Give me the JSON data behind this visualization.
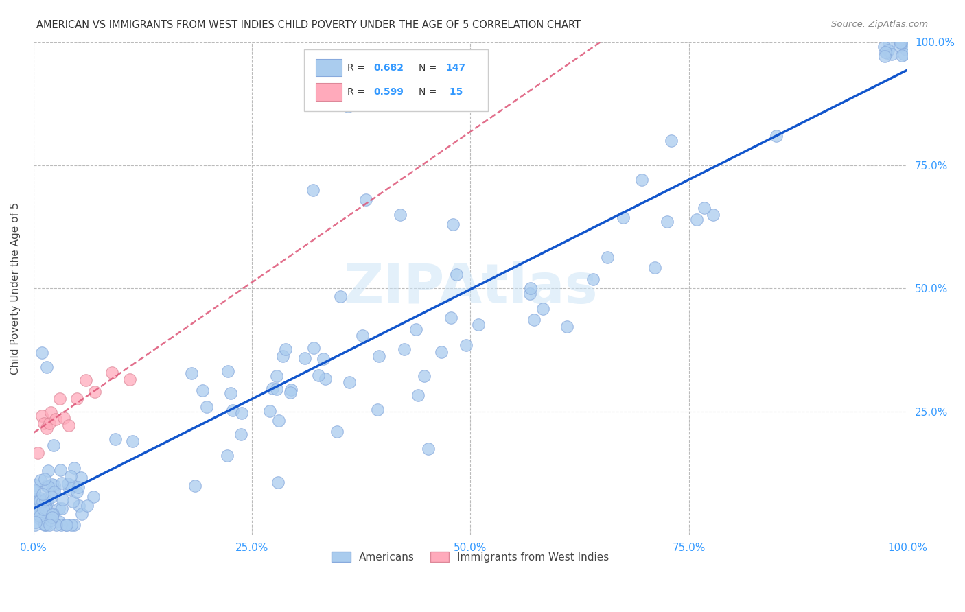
{
  "title": "AMERICAN VS IMMIGRANTS FROM WEST INDIES CHILD POVERTY UNDER THE AGE OF 5 CORRELATION CHART",
  "source": "Source: ZipAtlas.com",
  "ylabel": "Child Poverty Under the Age of 5",
  "background_color": "#ffffff",
  "watermark": "ZIPAtlas",
  "americans_R": 0.682,
  "americans_N": 147,
  "westindies_R": 0.599,
  "westindies_N": 15,
  "americans_color": "#aaccee",
  "americans_edge_color": "#88aadd",
  "americans_line_color": "#1155cc",
  "westindies_color": "#ffaabb",
  "westindies_edge_color": "#dd8899",
  "westindies_line_color": "#dd5577",
  "axis_label_color": "#3399ff",
  "grid_color": "#bbbbbb",
  "title_color": "#333333",
  "source_color": "#888888",
  "xlim": [
    0,
    1
  ],
  "ylim": [
    0,
    1
  ],
  "xticklabels": [
    "0.0%",
    "",
    "25.0%",
    "",
    "50.0%",
    "",
    "75.0%",
    "",
    "100.0%"
  ],
  "yticklabels_right": [
    "25.0%",
    "50.0%",
    "75.0%",
    "100.0%"
  ]
}
